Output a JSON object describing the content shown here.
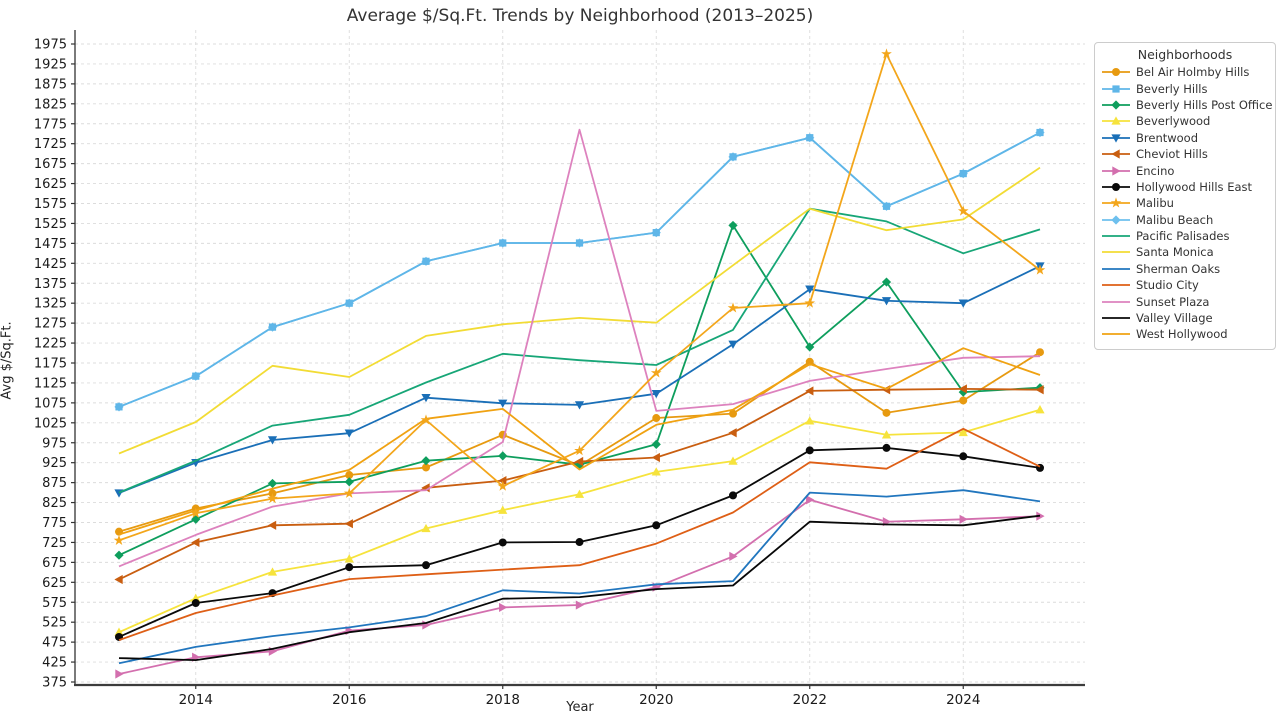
{
  "chart_data": {
    "type": "line",
    "title": "Average $/Sq.Ft. Trends by Neighborhood (2013–2025)",
    "xlabel": "Year",
    "ylabel": "Avg $/Sq.Ft.",
    "legend_title": "Neighborhoods",
    "legend_position": "upper right outside",
    "grid": true,
    "x": [
      2013,
      2014,
      2015,
      2016,
      2017,
      2018,
      2019,
      2020,
      2021,
      2022,
      2023,
      2024,
      2025
    ],
    "x_tick_labels": [
      2014,
      2016,
      2018,
      2020,
      2022,
      2024
    ],
    "ylim": [
      355,
      1995
    ],
    "y_tick_min": 375,
    "y_tick_max": 1975,
    "y_tick_step": 50,
    "series": [
      {
        "name": "Bel Air Holmby Hills",
        "color": "#E79A10",
        "marker": "circle",
        "z": 1,
        "values": [
          752,
          810,
          848,
          894,
          913,
          995,
          918,
          1037,
          1048,
          1178,
          1050,
          1081,
          1202
        ]
      },
      {
        "name": "Beverly Hills",
        "color": "#5FB6E8",
        "marker": "square",
        "z": 1,
        "values": [
          1065,
          1142,
          1265,
          1325,
          1430,
          1476,
          1476,
          1502,
          1692,
          1740,
          1568,
          1650,
          1753
        ]
      },
      {
        "name": "Beverly Hills Post Office",
        "color": "#0E9E5D",
        "marker": "diamond",
        "z": 1,
        "values": [
          693,
          783,
          873,
          877,
          930,
          942,
          920,
          971,
          1520,
          1215,
          1378,
          1102,
          1113
        ]
      },
      {
        "name": "Beverlywood",
        "color": "#F6E33C",
        "marker": "triangle-up",
        "z": 1,
        "values": [
          500,
          585,
          651,
          684,
          760,
          806,
          846,
          902,
          929,
          1030,
          995,
          1001,
          1058
        ]
      },
      {
        "name": "Brentwood",
        "color": "#1A6FB7",
        "marker": "triangle-down",
        "z": 1,
        "values": [
          849,
          925,
          982,
          999,
          1088,
          1074,
          1070,
          1098,
          1222,
          1360,
          1331,
          1325,
          1418
        ]
      },
      {
        "name": "Cheviot Hills",
        "color": "#C95E10",
        "marker": "triangle-left",
        "z": 1,
        "values": [
          632,
          725,
          768,
          772,
          862,
          880,
          928,
          938,
          1000,
          1105,
          1108,
          1110,
          1108
        ]
      },
      {
        "name": "Encino",
        "color": "#D36FAE",
        "marker": "triangle-right",
        "z": 1,
        "values": [
          395,
          437,
          452,
          504,
          518,
          562,
          568,
          613,
          690,
          832,
          777,
          783,
          791
        ]
      },
      {
        "name": "Hollywood Hills East",
        "color": "#0A0A0A",
        "marker": "circle",
        "z": 1,
        "values": [
          488,
          573,
          598,
          663,
          668,
          725,
          726,
          768,
          843,
          956,
          962,
          941,
          912
        ]
      },
      {
        "name": "Malibu",
        "color": "#F3A61B",
        "marker": "star",
        "z": 2,
        "values": [
          730,
          798,
          835,
          848,
          1032,
          866,
          955,
          1150,
          1313,
          1325,
          1950,
          1556,
          1408
        ]
      },
      {
        "name": "Malibu Beach",
        "color": "#6EC0EE",
        "marker": "diamond",
        "z": 0,
        "values": [
          1065,
          1142,
          1265,
          1325,
          1430,
          1476,
          1476,
          1502,
          1692,
          1740,
          1568,
          1650,
          1753
        ]
      },
      {
        "name": "Pacific Palisades",
        "color": "#17A677",
        "marker": "none",
        "z": 1,
        "values": [
          850,
          930,
          1018,
          1045,
          1126,
          1198,
          1182,
          1170,
          1258,
          1562,
          1530,
          1450,
          1510
        ]
      },
      {
        "name": "Santa Monica",
        "color": "#F2DC35",
        "marker": "none",
        "z": 1,
        "values": [
          948,
          1027,
          1168,
          1140,
          1243,
          1272,
          1288,
          1276,
          1420,
          1562,
          1508,
          1535,
          1665
        ]
      },
      {
        "name": "Sherman Oaks",
        "color": "#2176BE",
        "marker": "none",
        "z": 1,
        "values": [
          422,
          463,
          490,
          512,
          540,
          605,
          597,
          620,
          628,
          850,
          840,
          856,
          828
        ]
      },
      {
        "name": "Studio City",
        "color": "#DE5F16",
        "marker": "none",
        "z": 1,
        "values": [
          480,
          548,
          592,
          633,
          645,
          657,
          668,
          722,
          800,
          926,
          910,
          1010,
          915
        ]
      },
      {
        "name": "Sunset Plaza",
        "color": "#DD82BE",
        "marker": "none",
        "z": 1,
        "values": [
          665,
          744,
          815,
          848,
          856,
          977,
          1760,
          1055,
          1072,
          1130,
          1160,
          1188,
          1192
        ]
      },
      {
        "name": "Valley Village",
        "color": "#080808",
        "marker": "none",
        "z": 1,
        "values": [
          435,
          430,
          458,
          500,
          523,
          584,
          588,
          608,
          617,
          777,
          770,
          768,
          792
        ]
      },
      {
        "name": "West Hollywood",
        "color": "#F0A212",
        "marker": "none",
        "z": 1,
        "values": [
          745,
          805,
          860,
          907,
          1035,
          1060,
          908,
          1020,
          1058,
          1172,
          1110,
          1212,
          1145
        ]
      }
    ]
  }
}
